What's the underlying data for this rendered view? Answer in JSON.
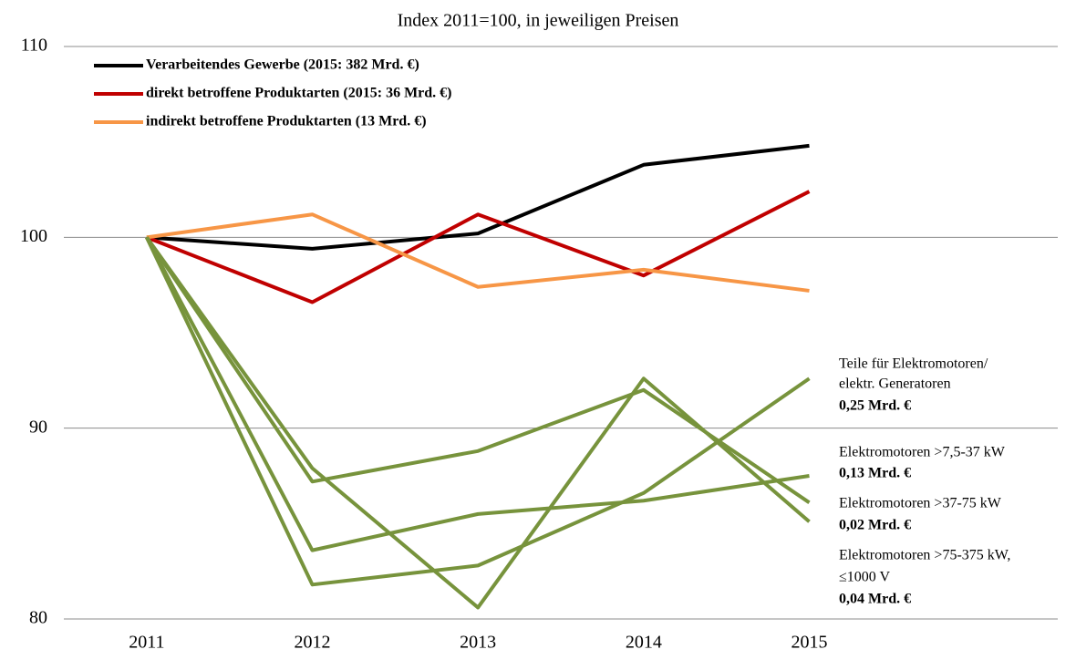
{
  "chart_data": {
    "type": "line",
    "title": "Index 2011=100, in jeweiligen Preisen",
    "categories": [
      "2011",
      "2012",
      "2013",
      "2014",
      "2015"
    ],
    "ylim": [
      80,
      110
    ],
    "yticks": [
      80,
      90,
      100,
      110
    ],
    "grid": true,
    "legend": "top-left",
    "series": [
      {
        "name": "Verarbeitendes Gewerbe (2015: 382 Mrd. €)",
        "color": "#000000",
        "values": [
          100,
          99.4,
          100.2,
          103.8,
          104.8
        ]
      },
      {
        "name": "direkt betroffene Produktarten (2015: 36 Mrd. €)",
        "color": "#c00000",
        "values": [
          100,
          96.6,
          101.2,
          98.0,
          102.4
        ]
      },
      {
        "name": "indirekt betroffene Produktarten (13 Mrd. €)",
        "color": "#f79646",
        "values": [
          100,
          101.2,
          97.4,
          98.3,
          97.2
        ]
      },
      {
        "name": [
          "Teile für Elektromotoren/",
          "elektr. Generatoren"
        ],
        "share": "0,25 Mrd. €",
        "color": "#77933c",
        "values": [
          100,
          81.8,
          82.8,
          86.6,
          92.6
        ]
      },
      {
        "name": [
          "Elektromotoren >7,5-37 kW"
        ],
        "share": "0,13 Mrd. €",
        "color": "#77933c",
        "values": [
          100,
          83.6,
          85.5,
          86.2,
          87.5
        ]
      },
      {
        "name": [
          "Elektromotoren >37-75 kW"
        ],
        "share": "0,02 Mrd. €",
        "color": "#77933c",
        "values": [
          100,
          87.2,
          88.8,
          92.0,
          86.1
        ]
      },
      {
        "name": [
          "Elektromotoren >75-375 kW,",
          "≤1000 V"
        ],
        "share": "0,04 Mrd. €",
        "color": "#77933c",
        "values": [
          100,
          87.9,
          80.6,
          92.6,
          85.1
        ]
      }
    ]
  }
}
